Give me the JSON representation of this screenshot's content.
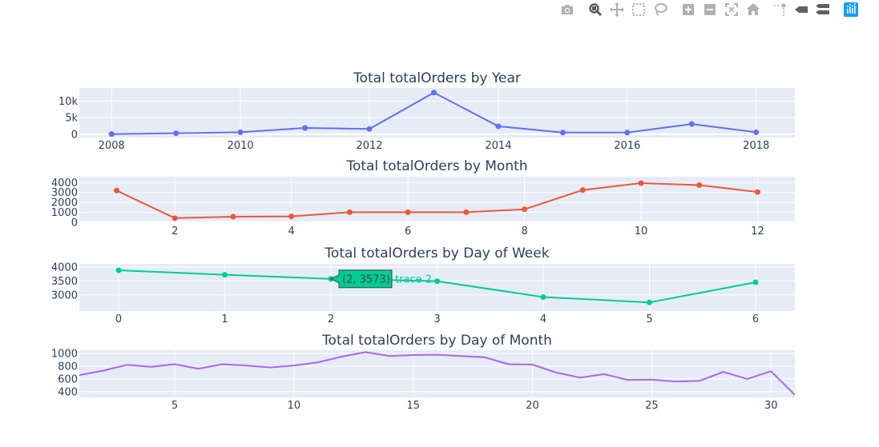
{
  "modebar": {
    "buttons": [
      {
        "name": "camera-icon"
      },
      {
        "name": "zoom-icon"
      },
      {
        "name": "pan-icon"
      },
      {
        "name": "box-select-icon"
      },
      {
        "name": "lasso-select-icon"
      },
      {
        "name": "zoom-in-icon"
      },
      {
        "name": "zoom-out-icon"
      },
      {
        "name": "autoscale-icon"
      },
      {
        "name": "reset-axes-icon"
      },
      {
        "name": "spike-lines-icon"
      },
      {
        "name": "hover-closest-icon"
      },
      {
        "name": "hover-compare-icon"
      },
      {
        "name": "plotly-logo-icon"
      }
    ]
  },
  "chart_data": [
    {
      "type": "line",
      "title": "Total totalOrders by Year",
      "color": "#636efa",
      "markers": true,
      "x": [
        2008,
        2009,
        2010,
        2011,
        2012,
        2013,
        2014,
        2015,
        2016,
        2017,
        2018
      ],
      "y": [
        50,
        300,
        600,
        1900,
        1600,
        12600,
        2400,
        500,
        500,
        3100,
        600
      ],
      "xlim": [
        2007.5,
        2018.6
      ],
      "ylim": [
        -1000,
        14000
      ],
      "xticks": [
        2008,
        2010,
        2012,
        2014,
        2016,
        2018
      ],
      "xtick_labels": [
        "2008",
        "2010",
        "2012",
        "2014",
        "2016",
        "2018"
      ],
      "yticks": [
        0,
        5000,
        10000
      ],
      "ytick_labels": [
        "0",
        "5k",
        "10k"
      ]
    },
    {
      "type": "line",
      "title": "Total totalOrders by Month",
      "color": "#ef553b",
      "markers": true,
      "x": [
        1,
        2,
        3,
        4,
        5,
        6,
        7,
        8,
        9,
        10,
        11,
        12
      ],
      "y": [
        3200,
        400,
        550,
        580,
        1000,
        1000,
        1000,
        1300,
        3250,
        3950,
        3750,
        3050
      ],
      "xlim": [
        0.36,
        12.64
      ],
      "ylim": [
        -100,
        4600
      ],
      "xticks": [
        2,
        4,
        6,
        8,
        10,
        12
      ],
      "xtick_labels": [
        "2",
        "4",
        "6",
        "8",
        "10",
        "12"
      ],
      "yticks": [
        0,
        1000,
        2000,
        3000,
        4000
      ],
      "ytick_labels": [
        "0",
        "1000",
        "2000",
        "3000",
        "4000"
      ]
    },
    {
      "type": "line",
      "title": "Total totalOrders by Day of Week",
      "color": "#00cc96",
      "markers": true,
      "x": [
        0,
        1,
        2,
        3,
        4,
        5,
        6
      ],
      "y": [
        3880,
        3720,
        3573,
        3490,
        2920,
        2730,
        3450
      ],
      "xlim": [
        -0.37,
        6.37
      ],
      "ylim": [
        2420,
        4110
      ],
      "xticks": [
        0,
        1,
        2,
        3,
        4,
        5,
        6
      ],
      "xtick_labels": [
        "0",
        "1",
        "2",
        "3",
        "4",
        "5",
        "6"
      ],
      "yticks": [
        3000,
        3500,
        4000
      ],
      "ytick_labels": [
        "3000",
        "3500",
        "4000"
      ],
      "hover": {
        "x": 2,
        "y": 3573,
        "label": "(2, 3573)",
        "trace": "trace 2"
      }
    },
    {
      "type": "line",
      "title": "Total totalOrders by Day of Month",
      "color": "#ab63fa",
      "markers": false,
      "x": [
        1,
        2,
        3,
        4,
        5,
        6,
        7,
        8,
        9,
        10,
        11,
        12,
        13,
        14,
        15,
        16,
        17,
        18,
        19,
        20,
        21,
        22,
        23,
        24,
        25,
        26,
        27,
        28,
        29,
        30,
        31
      ],
      "y": [
        660,
        730,
        820,
        790,
        830,
        760,
        830,
        810,
        780,
        810,
        860,
        950,
        1020,
        960,
        975,
        980,
        960,
        940,
        830,
        825,
        700,
        620,
        675,
        585,
        590,
        560,
        570,
        710,
        600,
        720,
        350
      ],
      "xlim": [
        1,
        31
      ],
      "ylim": [
        310,
        1050
      ],
      "xticks": [
        5,
        10,
        15,
        20,
        25,
        30
      ],
      "xtick_labels": [
        "5",
        "10",
        "15",
        "20",
        "25",
        "30"
      ],
      "yticks": [
        400,
        600,
        800,
        1000
      ],
      "ytick_labels": [
        "400",
        "600",
        "800",
        "1000"
      ]
    }
  ]
}
